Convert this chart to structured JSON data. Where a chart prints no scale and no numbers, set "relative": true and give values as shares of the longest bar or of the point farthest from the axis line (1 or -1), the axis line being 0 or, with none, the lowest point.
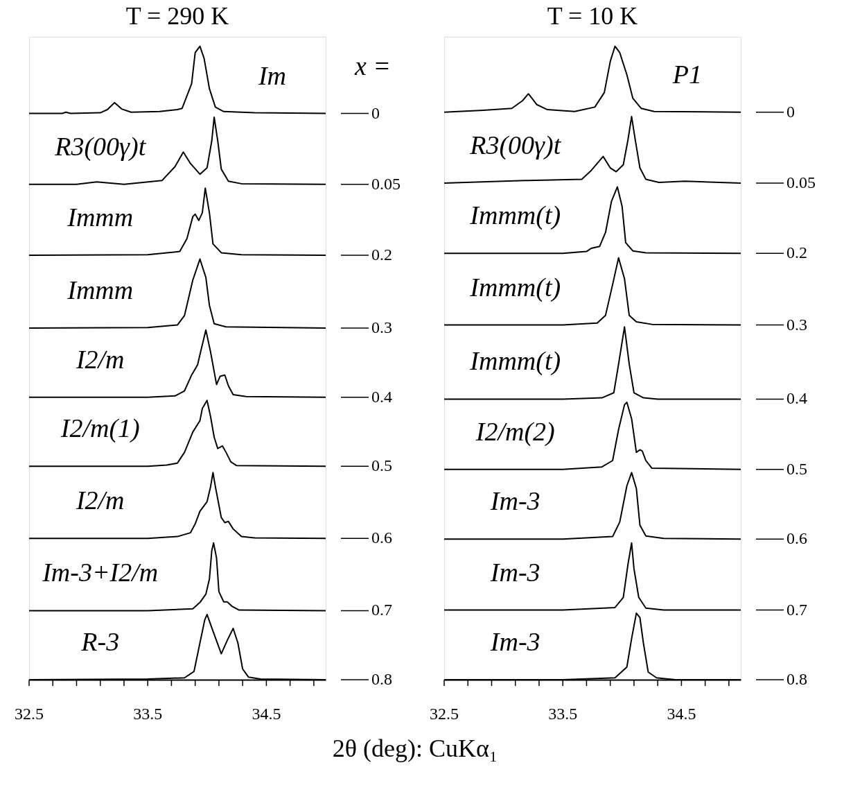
{
  "chart_data": [
    {
      "type": "line",
      "title": "T = 290 K",
      "xlabel": "2θ (deg): CuKα₁",
      "relative": true,
      "legend": "right",
      "grid": false,
      "xlim": [
        32.5,
        35.0
      ],
      "xticks": [
        32.5,
        {
          "value": 32.7,
          "label": null
        },
        {
          "value": 32.9,
          "label": null
        },
        {
          "value": 33.1,
          "label": null
        },
        {
          "value": 33.3,
          "label": null
        },
        33.5,
        {
          "value": 33.7,
          "label": null
        },
        {
          "value": 33.9,
          "label": null
        },
        {
          "value": 34.1,
          "label": null
        },
        {
          "value": 34.3,
          "label": null
        },
        34.5,
        {
          "value": 34.7,
          "label": null
        },
        {
          "value": 34.9,
          "label": null
        }
      ],
      "legend_title": "x =",
      "annotations": [
        "Im",
        "R3(00γ)t",
        "Immm",
        "Immm",
        "I2/m",
        "I2/m(1)",
        "I2/m",
        "Im-3+I2/m",
        "R-3"
      ],
      "series": [
        {
          "name": "0",
          "color": "#000000",
          "x": [
            32.5,
            32.78,
            32.81,
            32.85,
            33.1,
            33.16,
            33.22,
            33.28,
            33.36,
            33.6,
            33.75,
            33.79,
            33.87,
            33.9,
            33.94,
            33.975,
            34.02,
            34.07,
            34.14,
            34.4,
            35.0
          ],
          "values": [
            0.894,
            0.894,
            0.896,
            0.894,
            0.895,
            0.9,
            0.911,
            0.901,
            0.896,
            0.897,
            0.9,
            0.902,
            0.941,
            0.99,
            1.0,
            0.981,
            0.933,
            0.904,
            0.897,
            0.895,
            0.894
          ]
        },
        {
          "name": "0.05",
          "color": "#000000",
          "x": [
            32.5,
            32.9,
            33.07,
            33.3,
            33.62,
            33.73,
            33.8,
            33.86,
            33.94,
            34.0,
            34.04,
            34.06,
            34.09,
            34.12,
            34.18,
            34.29,
            35.0
          ],
          "values": [
            0.782,
            0.782,
            0.786,
            0.782,
            0.788,
            0.81,
            0.833,
            0.815,
            0.798,
            0.808,
            0.851,
            0.888,
            0.851,
            0.806,
            0.787,
            0.783,
            0.782
          ]
        },
        {
          "name": "0.2",
          "color": "#000000",
          "x": [
            32.5,
            33.5,
            33.77,
            33.83,
            33.88,
            33.9,
            33.93,
            33.96,
            33.985,
            34.02,
            34.05,
            34.12,
            34.29,
            35.0
          ],
          "values": [
            0.67,
            0.671,
            0.676,
            0.696,
            0.731,
            0.735,
            0.725,
            0.737,
            0.776,
            0.737,
            0.688,
            0.674,
            0.671,
            0.67
          ]
        },
        {
          "name": "0.3",
          "color": "#000000",
          "x": [
            32.5,
            33.5,
            33.75,
            33.81,
            33.88,
            33.94,
            33.99,
            34.02,
            34.06,
            34.16,
            35.0
          ],
          "values": [
            0.555,
            0.556,
            0.56,
            0.575,
            0.631,
            0.664,
            0.635,
            0.591,
            0.562,
            0.557,
            0.555
          ]
        },
        {
          "name": "0.4",
          "color": "#000000",
          "x": [
            32.5,
            33.5,
            33.73,
            33.81,
            33.87,
            33.92,
            33.94,
            33.99,
            34.03,
            34.08,
            34.11,
            34.15,
            34.18,
            34.22,
            34.33,
            35.0
          ],
          "values": [
            0.446,
            0.446,
            0.448,
            0.456,
            0.481,
            0.497,
            0.513,
            0.552,
            0.517,
            0.466,
            0.479,
            0.481,
            0.464,
            0.45,
            0.447,
            0.446
          ]
        },
        {
          "name": "0.5",
          "color": "#000000",
          "x": [
            32.5,
            33.5,
            33.66,
            33.75,
            33.81,
            33.88,
            33.94,
            33.96,
            34.0,
            34.03,
            34.06,
            34.09,
            34.13,
            34.16,
            34.2,
            34.25,
            35.0
          ],
          "values": [
            0.337,
            0.337,
            0.339,
            0.342,
            0.359,
            0.391,
            0.409,
            0.428,
            0.441,
            0.415,
            0.383,
            0.365,
            0.369,
            0.359,
            0.344,
            0.338,
            0.337
          ]
        },
        {
          "name": "0.6",
          "color": "#000000",
          "x": [
            32.5,
            33.5,
            33.75,
            33.86,
            33.9,
            33.94,
            34.0,
            34.03,
            34.05,
            34.07,
            34.12,
            34.15,
            34.18,
            34.22,
            34.29,
            34.4,
            35.0
          ],
          "values": [
            0.223,
            0.223,
            0.226,
            0.232,
            0.246,
            0.266,
            0.281,
            0.305,
            0.327,
            0.305,
            0.256,
            0.248,
            0.25,
            0.238,
            0.226,
            0.224,
            0.223
          ]
        },
        {
          "name": "0.7",
          "color": "#000000",
          "x": [
            32.5,
            33.5,
            33.88,
            33.94,
            33.99,
            34.02,
            34.04,
            34.055,
            34.08,
            34.1,
            34.14,
            34.17,
            34.21,
            34.27,
            35.0
          ],
          "values": [
            0.109,
            0.109,
            0.112,
            0.122,
            0.135,
            0.159,
            0.204,
            0.216,
            0.192,
            0.139,
            0.123,
            0.123,
            0.116,
            0.11,
            0.109
          ]
        },
        {
          "name": "0.8",
          "color": "#000000",
          "x": [
            32.5,
            33.5,
            33.81,
            33.89,
            33.94,
            33.98,
            34.0,
            34.04,
            34.12,
            34.17,
            34.22,
            34.26,
            34.3,
            34.35,
            34.45,
            35.0
          ],
          "values": [
            0.0,
            0.001,
            0.003,
            0.013,
            0.058,
            0.094,
            0.103,
            0.082,
            0.041,
            0.062,
            0.081,
            0.058,
            0.017,
            0.004,
            0.001,
            0.0
          ]
        }
      ]
    },
    {
      "type": "line",
      "title": "T = 10 K",
      "relative": true,
      "legend": "right",
      "grid": false,
      "xlim": [
        32.5,
        35.0
      ],
      "xticks": [
        32.5,
        {
          "value": 32.7,
          "label": null
        },
        {
          "value": 32.9,
          "label": null
        },
        {
          "value": 33.1,
          "label": null
        },
        {
          "value": 33.3,
          "label": null
        },
        33.5,
        {
          "value": 33.7,
          "label": null
        },
        {
          "value": 33.9,
          "label": null
        },
        {
          "value": 34.1,
          "label": null
        },
        {
          "value": 34.3,
          "label": null
        },
        34.5,
        {
          "value": 34.7,
          "label": null
        },
        {
          "value": 34.9,
          "label": null
        }
      ],
      "annotations": [
        "P1",
        "R3(00γ)t",
        "Immm(t)",
        "Immm(t)",
        "Immm(t)",
        "I2/m(2)",
        "Im-3",
        "Im-3",
        "Im-3"
      ],
      "series": [
        {
          "name": "0",
          "color": "#000000",
          "x": [
            32.5,
            32.83,
            33.07,
            33.16,
            33.21,
            33.28,
            33.37,
            33.6,
            33.77,
            33.85,
            33.9,
            33.94,
            33.98,
            34.04,
            34.09,
            34.16,
            34.27,
            35.0
          ],
          "values": [
            0.896,
            0.899,
            0.902,
            0.914,
            0.925,
            0.908,
            0.9,
            0.897,
            0.904,
            0.927,
            0.976,
            1.0,
            0.99,
            0.955,
            0.918,
            0.902,
            0.897,
            0.896
          ]
        },
        {
          "name": "0.05",
          "color": "#000000",
          "x": [
            32.5,
            33.18,
            33.66,
            33.74,
            33.84,
            33.9,
            33.95,
            34.01,
            34.05,
            34.08,
            34.11,
            34.15,
            34.2,
            34.31,
            34.53,
            35.0
          ],
          "values": [
            0.784,
            0.788,
            0.79,
            0.804,
            0.826,
            0.808,
            0.802,
            0.813,
            0.853,
            0.889,
            0.853,
            0.808,
            0.79,
            0.785,
            0.787,
            0.784
          ]
        },
        {
          "name": "0.2",
          "color": "#000000",
          "x": [
            32.5,
            33.5,
            33.7,
            33.74,
            33.81,
            33.86,
            33.91,
            33.96,
            34.0,
            34.03,
            34.09,
            34.2,
            35.0
          ],
          "values": [
            0.673,
            0.673,
            0.676,
            0.681,
            0.684,
            0.706,
            0.755,
            0.778,
            0.747,
            0.69,
            0.677,
            0.674,
            0.673
          ]
        },
        {
          "name": "0.3",
          "color": "#000000",
          "x": [
            32.5,
            33.5,
            33.79,
            33.86,
            33.92,
            33.97,
            34.02,
            34.06,
            34.12,
            34.25,
            35.0
          ],
          "values": [
            0.56,
            0.56,
            0.563,
            0.575,
            0.624,
            0.666,
            0.633,
            0.575,
            0.565,
            0.561,
            0.56
          ]
        },
        {
          "name": "0.4",
          "color": "#000000",
          "x": [
            32.5,
            33.5,
            33.83,
            33.93,
            33.97,
            34.02,
            34.06,
            34.1,
            34.18,
            34.3,
            35.0
          ],
          "values": [
            0.443,
            0.443,
            0.445,
            0.453,
            0.498,
            0.557,
            0.498,
            0.453,
            0.445,
            0.443,
            0.443
          ]
        },
        {
          "name": "0.5",
          "color": "#000000",
          "x": [
            32.5,
            33.5,
            33.83,
            33.92,
            33.97,
            34.02,
            34.04,
            34.08,
            34.12,
            34.15,
            34.17,
            34.2,
            34.25,
            35.0
          ],
          "values": [
            0.332,
            0.332,
            0.336,
            0.346,
            0.395,
            0.434,
            0.438,
            0.412,
            0.359,
            0.363,
            0.361,
            0.346,
            0.334,
            0.332
          ]
        },
        {
          "name": "0.6",
          "color": "#000000",
          "x": [
            32.5,
            33.5,
            33.92,
            33.98,
            34.04,
            34.08,
            34.12,
            34.15,
            34.2,
            34.35,
            35.0
          ],
          "values": [
            0.222,
            0.222,
            0.226,
            0.249,
            0.306,
            0.327,
            0.302,
            0.244,
            0.227,
            0.223,
            0.222
          ]
        },
        {
          "name": "0.7",
          "color": "#000000",
          "x": [
            32.5,
            33.5,
            33.94,
            34.01,
            34.05,
            34.08,
            34.1,
            34.14,
            34.2,
            34.35,
            35.0
          ],
          "values": [
            0.11,
            0.11,
            0.114,
            0.13,
            0.183,
            0.216,
            0.175,
            0.13,
            0.113,
            0.11,
            0.11
          ]
        },
        {
          "name": "0.8",
          "color": "#000000",
          "x": [
            32.5,
            33.5,
            33.94,
            34.04,
            34.08,
            34.12,
            34.15,
            34.18,
            34.22,
            34.29,
            34.45,
            35.0
          ],
          "values": [
            0.0,
            0.0,
            0.003,
            0.02,
            0.065,
            0.105,
            0.098,
            0.057,
            0.012,
            0.003,
            0.0,
            0.0
          ]
        }
      ]
    }
  ]
}
